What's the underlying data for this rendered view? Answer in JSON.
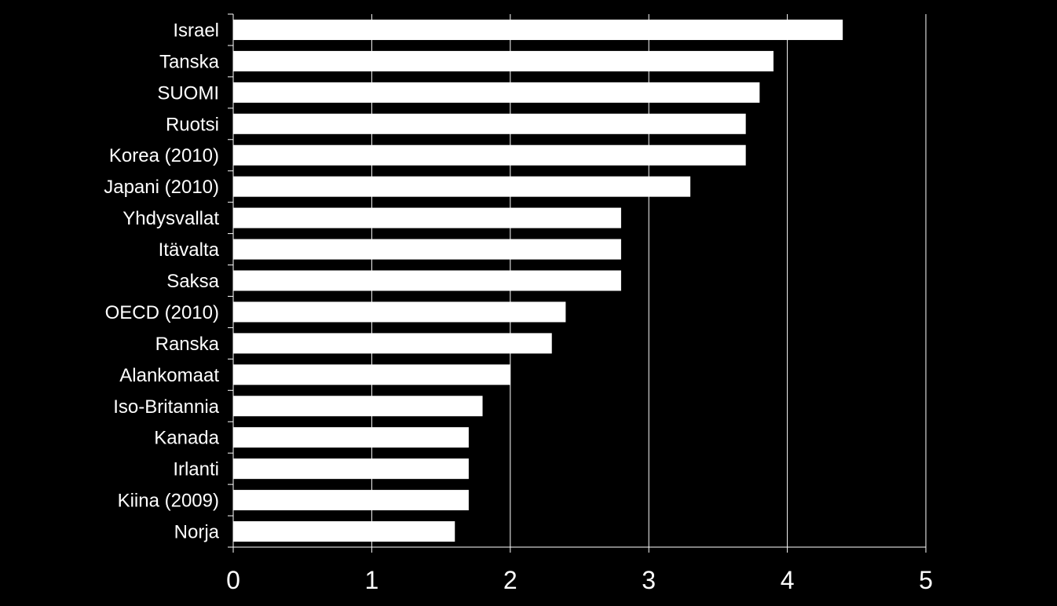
{
  "chart_data": {
    "type": "bar",
    "orientation": "horizontal",
    "categories": [
      "Israel",
      "Tanska",
      "SUOMI",
      "Ruotsi",
      "Korea (2010)",
      "Japani (2010)",
      "Yhdysvallat",
      "Itävalta",
      "Saksa",
      "OECD (2010)",
      "Ranska",
      "Alankomaat",
      "Iso-Britannia",
      "Kanada",
      "Irlanti",
      "Kiina (2009)",
      "Norja"
    ],
    "values": [
      4.4,
      3.9,
      3.8,
      3.7,
      3.7,
      3.3,
      2.8,
      2.8,
      2.8,
      2.4,
      2.3,
      2.0,
      1.8,
      1.7,
      1.7,
      1.7,
      1.6
    ],
    "xlim": [
      0,
      5
    ],
    "xticks": [
      "0",
      "1",
      "2",
      "3",
      "4",
      "5"
    ],
    "grid": "vertical",
    "title": "",
    "xlabel": "",
    "ylabel": ""
  },
  "colors": {
    "background": "#000000",
    "bar": "#ffffff",
    "text": "#ffffff",
    "grid": "#ffffff"
  }
}
